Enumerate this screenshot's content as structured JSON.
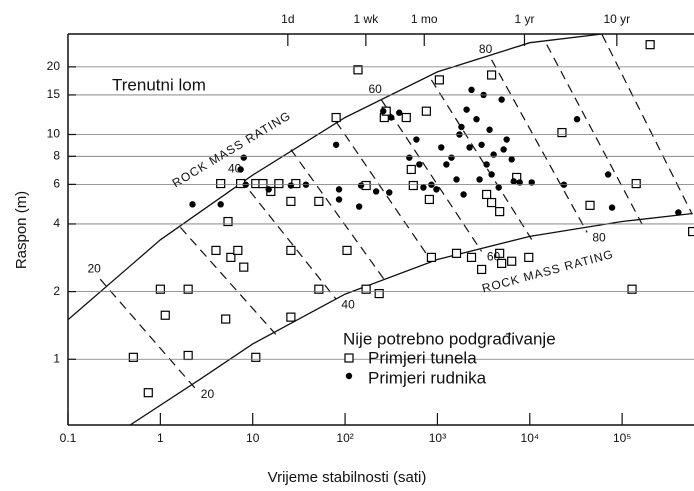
{
  "chart_data": {
    "type": "scatter",
    "x_label": "Vrijeme stabilnosti (sati)",
    "y_label": "Raspon (m)",
    "xlog": true,
    "ylog": true,
    "xlim": [
      0.1,
      600000
    ],
    "ylim": [
      0.51,
      28
    ],
    "xticks": [
      0.1,
      1,
      10,
      {
        "value": 100,
        "label": "10²"
      },
      {
        "value": 1000,
        "label": "10³"
      },
      {
        "value": 10000,
        "label": "10⁴"
      },
      {
        "value": 100000,
        "label": "10⁵"
      }
    ],
    "x2ticks": [
      {
        "value": 24,
        "label": "1d"
      },
      {
        "value": 168,
        "label": "1 wk"
      },
      {
        "value": 720,
        "label": "1 mo"
      },
      {
        "value": 8760,
        "label": "1 yr"
      },
      {
        "value": 87600,
        "label": "10 yr"
      }
    ],
    "yticks": [
      1,
      2,
      4,
      6,
      8,
      10,
      15,
      20
    ],
    "grid": true,
    "legend_title": "Nije potrebno podgrađivanje",
    "annotations": [
      "Trenutni lom"
    ],
    "series": [
      {
        "name": "Primjeri tunela",
        "marker": "square",
        "color": "#000000",
        "x": [
          0.51,
          0.74,
          1,
          1.13,
          2.0,
          2.0,
          4.5,
          5.1,
          5.4,
          4.0,
          5.8,
          6.9,
          7.4,
          8.0,
          10.8,
          10.8,
          12.9,
          15.7,
          19.2,
          25.9,
          25.9,
          25.9,
          29.3,
          52,
          52,
          80,
          105,
          138,
          169,
          169,
          234,
          266,
          279,
          460,
          521,
          548,
          759,
          818,
          861,
          1050,
          1610,
          2340,
          3010,
          3410,
          3860,
          3860,
          4720,
          4720,
          4960,
          6370,
          7220,
          9750,
          22300,
          44900,
          128000,
          142000,
          201000,
          580000
        ],
        "values": [
          1.02,
          0.71,
          2.05,
          1.57,
          2.05,
          1.04,
          6.05,
          1.51,
          4.1,
          3.05,
          2.84,
          3.05,
          6.05,
          2.57,
          6.05,
          1.02,
          6.05,
          5.58,
          6.05,
          5.04,
          1.54,
          3.05,
          6.05,
          5.04,
          2.05,
          11.9,
          3.05,
          19.4,
          5.93,
          2.05,
          1.96,
          11.9,
          12.7,
          11.9,
          6.99,
          5.93,
          12.7,
          5.14,
          2.84,
          17.5,
          2.96,
          2.84,
          2.51,
          5.41,
          18.4,
          4.98,
          4.54,
          2.96,
          2.67,
          2.73,
          6.44,
          2.84,
          10.2,
          4.84,
          2.05,
          6.05,
          25.1,
          3.7
        ]
      },
      {
        "name": "Primjeri rudnika",
        "marker": "circle",
        "color": "#000000",
        "x": [
          2.23,
          4.5,
          7.4,
          8.0,
          8.4,
          14.9,
          25.9,
          37.7,
          80,
          86,
          86,
          142,
          149,
          217,
          301,
          259,
          316,
          386,
          496,
          592,
          637,
          705,
          861,
          975,
          1100,
          1250,
          1420,
          1610,
          1730,
          1820,
          1920,
          2070,
          2230,
          2340,
          2650,
          2860,
          3010,
          3160,
          3410,
          3670,
          3860,
          4060,
          4610,
          4960,
          5210,
          5620,
          6370,
          6700,
          7780,
          10500,
          23400,
          32500,
          70500,
          77800,
          406000
        ],
        "values": [
          4.89,
          4.89,
          6.99,
          7.89,
          5.98,
          5.7,
          5.93,
          5.98,
          9.0,
          5.7,
          5.14,
          4.78,
          5.93,
          5.58,
          5.52,
          12.7,
          11.9,
          12.5,
          7.89,
          9.5,
          7.36,
          5.81,
          5.98,
          5.7,
          8.76,
          7.36,
          7.89,
          6.31,
          10.0,
          10.8,
          5.41,
          12.9,
          8.76,
          15.8,
          11.7,
          6.31,
          9.0,
          15.0,
          7.36,
          10.5,
          6.64,
          8.14,
          5.81,
          14.3,
          8.58,
          9.5,
          7.75,
          6.19,
          6.12,
          6.12,
          5.98,
          11.7,
          6.64,
          4.73,
          4.5
        ]
      }
    ],
    "curves": [
      {
        "name": "ROCK MASS RATING",
        "x": [
          0.1,
          1,
          10,
          100,
          1000,
          10000,
          60700
        ],
        "values": [
          1.5,
          3.4,
          6.6,
          11.9,
          19,
          25.6,
          28
        ]
      },
      {
        "name": "ROCK MASS RATING",
        "x": [
          0.47,
          2.7,
          10,
          100,
          1000,
          10000,
          100000,
          580000
        ],
        "values": [
          0.51,
          0.815,
          1.17,
          1.95,
          2.78,
          3.52,
          4.1,
          4.45
        ]
      }
    ],
    "rating_lines": [
      {
        "label": 20,
        "x": [
          0.223,
          2.4
        ],
        "values": [
          2.27,
          0.74
        ]
      },
      {
        "x": [
          1.65,
          17.8
        ],
        "values": [
          3.86,
          1.29
        ]
      },
      {
        "label": 40,
        "x": [
          7.4,
          80
        ],
        "values": [
          6.31,
          1.85
        ]
      },
      {
        "x": [
          25.9,
          279
        ],
        "values": [
          8.58,
          2.2
        ]
      },
      {
        "x": [
          80,
          861
        ],
        "values": [
          11.4,
          2.73
        ]
      },
      {
        "label": 60,
        "x": [
          246,
          3006
        ],
        "values": [
          14.3,
          3.02
        ]
      },
      {
        "x": [
          861,
          10500
        ],
        "values": [
          17.5,
          3.41
        ]
      },
      {
        "label": 80,
        "x": [
          3860,
          41700
        ],
        "values": [
          21.5,
          3.67
        ]
      },
      {
        "x": [
          15300,
          165000
        ],
        "values": [
          25.1,
          3.98
        ]
      },
      {
        "x": [
          60700,
          575000
        ],
        "values": [
          27.8,
          4.41
        ]
      }
    ]
  }
}
